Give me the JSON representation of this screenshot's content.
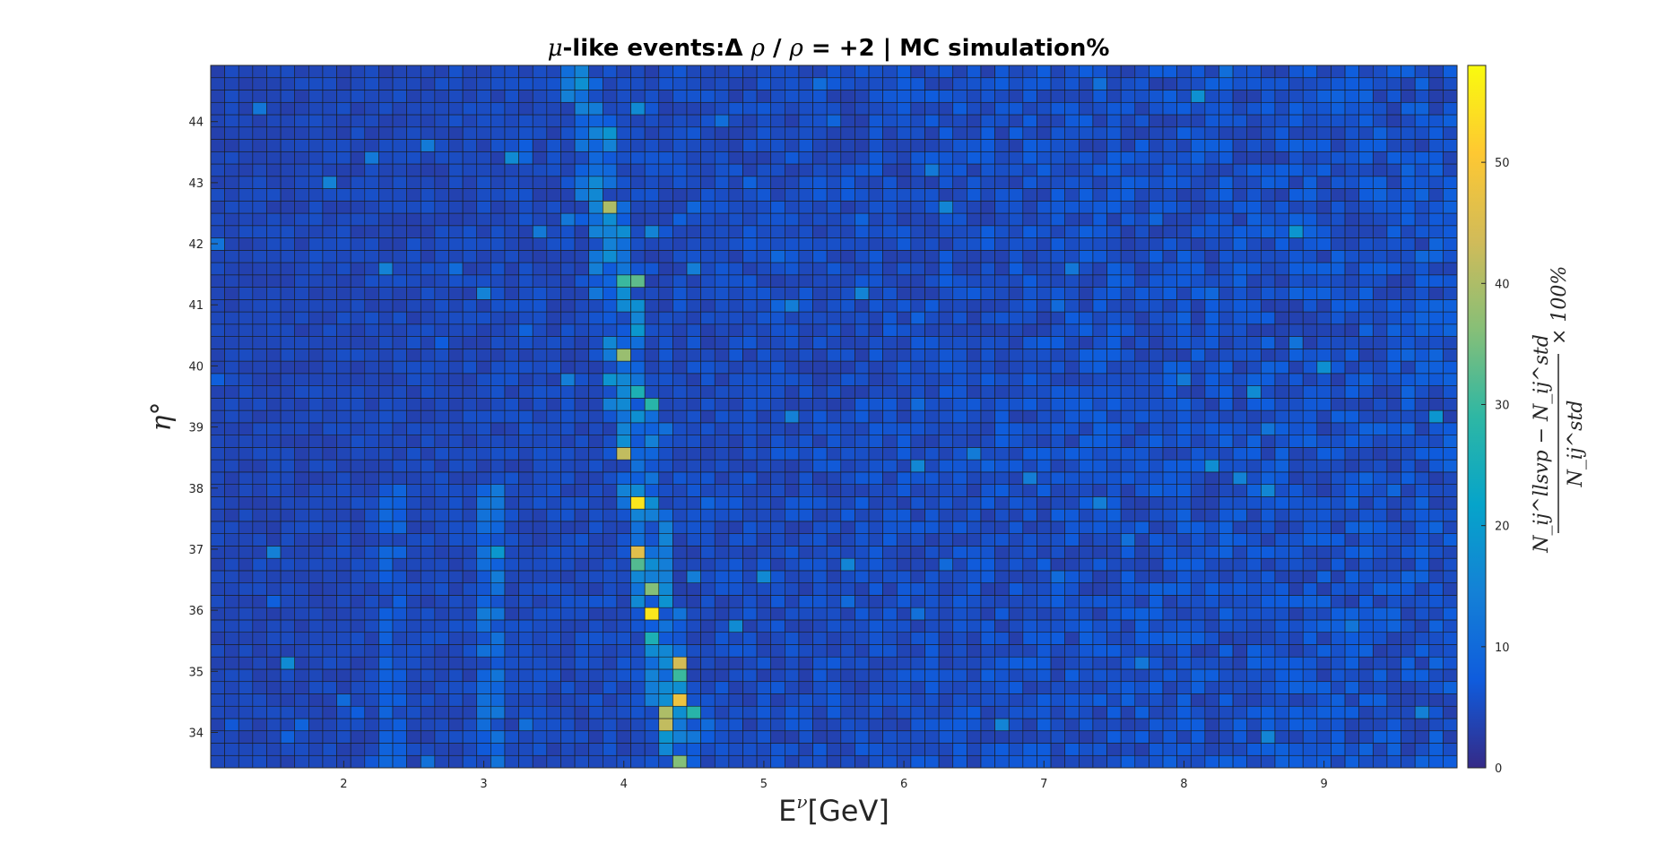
{
  "chart_data": {
    "type": "heatmap",
    "title_parts": {
      "mu": "μ",
      "text1": "-like events:Δ ",
      "rho1": "ρ",
      "text2": " / ",
      "rho2": "ρ",
      "text3": " = +2 | MC simulation%"
    },
    "xlabel": {
      "main": "E",
      "sup": "ν",
      "tail": "[GeV]"
    },
    "ylabel": "η°",
    "colorbar_label": {
      "numerator": "N_ij^llsvp − N_ij^std",
      "denominator": "N_ij^std",
      "suffix": "× 100%"
    },
    "xlim": [
      1.05,
      9.95
    ],
    "ylim": [
      33.42,
      44.92
    ],
    "x_ticks": [
      "2",
      "3",
      "4",
      "5",
      "6",
      "7",
      "8",
      "9"
    ],
    "y_ticks": [
      "34",
      "35",
      "36",
      "37",
      "38",
      "39",
      "40",
      "41",
      "42",
      "43",
      "44"
    ],
    "colorbar_ticks": [
      "0",
      "10",
      "20",
      "30",
      "40",
      "50"
    ],
    "clim": [
      0,
      58
    ],
    "grid": {
      "x_bins": 89,
      "y_bins": 57
    },
    "colormap": "parula",
    "background_level": 3,
    "hot_cells": [
      {
        "x": 4.1,
        "y": 37.8,
        "value": 55
      },
      {
        "x": 4.2,
        "y": 36.0,
        "value": 55
      },
      {
        "x": 4.4,
        "y": 34.6,
        "value": 48
      },
      {
        "x": 4.1,
        "y": 37.0,
        "value": 46
      },
      {
        "x": 4.3,
        "y": 34.2,
        "value": 42
      },
      {
        "x": 3.85,
        "y": 42.7,
        "value": 40
      },
      {
        "x": 4.0,
        "y": 38.6,
        "value": 42
      },
      {
        "x": 4.4,
        "y": 35.1,
        "value": 44
      },
      {
        "x": 4.3,
        "y": 34.3,
        "value": 40
      },
      {
        "x": 4.0,
        "y": 40.2,
        "value": 38
      },
      {
        "x": 4.2,
        "y": 36.4,
        "value": 36
      },
      {
        "x": 4.1,
        "y": 36.8,
        "value": 32
      },
      {
        "x": 4.4,
        "y": 34.9,
        "value": 30
      },
      {
        "x": 4.4,
        "y": 33.5,
        "value": 36
      },
      {
        "x": 3.95,
        "y": 41.3,
        "value": 30
      },
      {
        "x": 4.05,
        "y": 41.3,
        "value": 33
      },
      {
        "x": 4.2,
        "y": 39.3,
        "value": 28
      },
      {
        "x": 4.5,
        "y": 34.4,
        "value": 28
      },
      {
        "x": 4.2,
        "y": 35.5,
        "value": 26
      },
      {
        "x": 4.05,
        "y": 39.6,
        "value": 26
      }
    ]
  }
}
